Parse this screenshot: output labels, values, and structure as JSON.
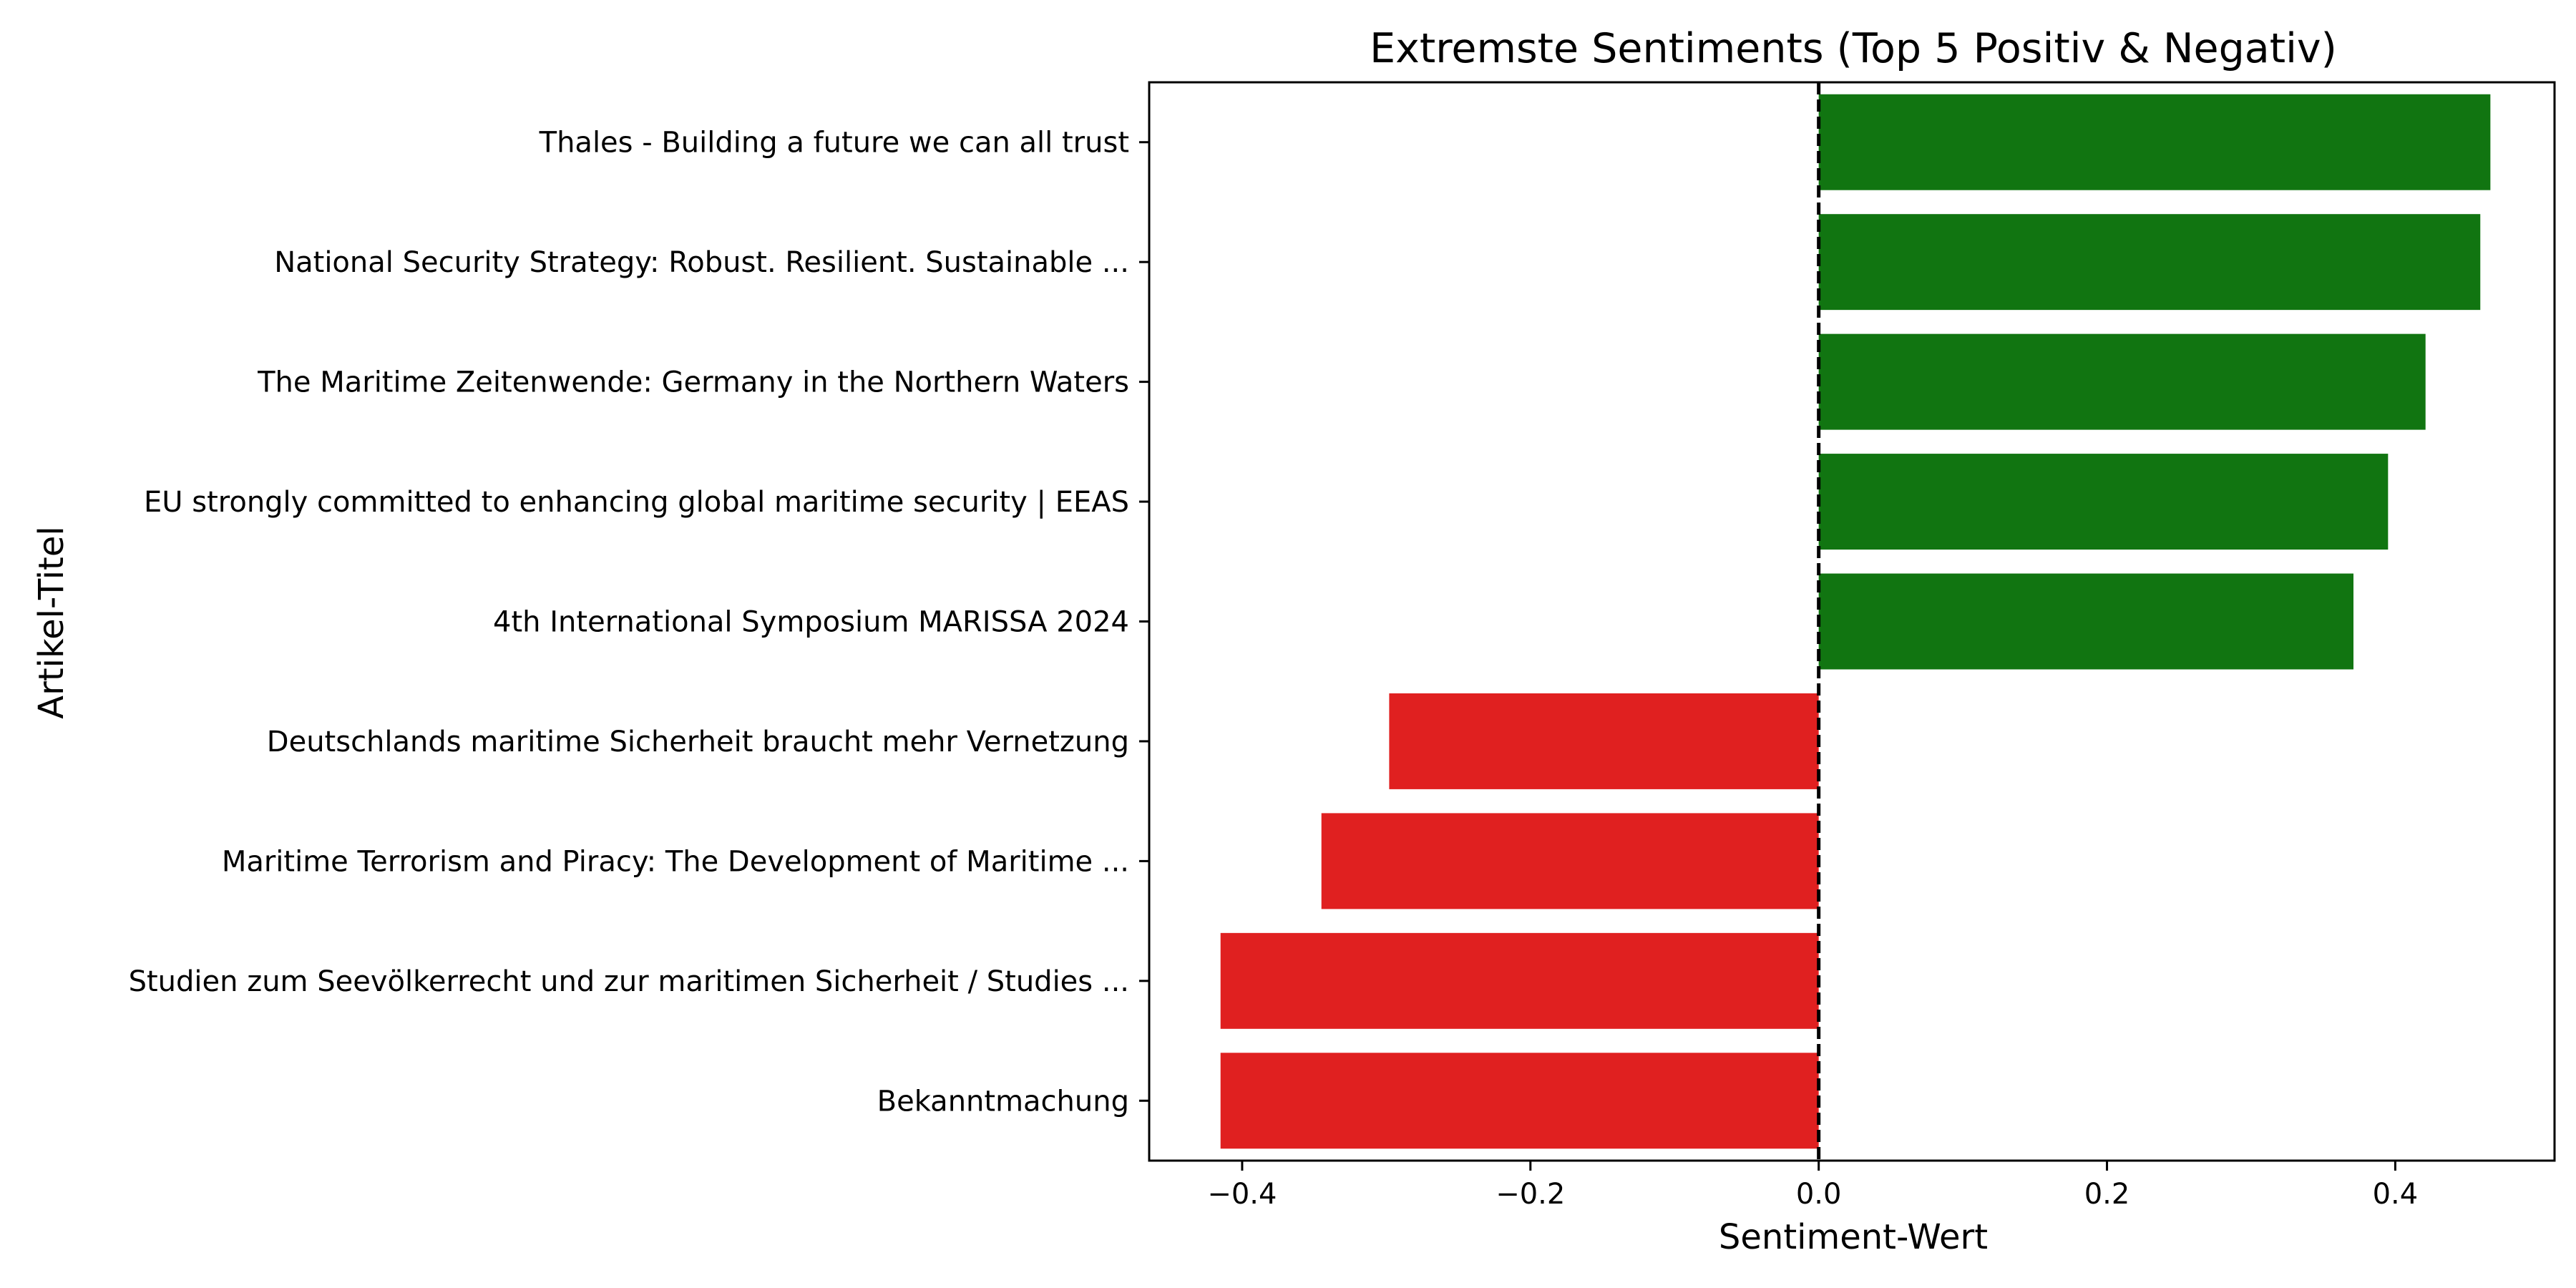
{
  "chart_data": {
    "type": "bar",
    "orientation": "horizontal",
    "title": "Extremste Sentiments (Top 5 Positiv & Negativ)",
    "xlabel": "Sentiment-Wert",
    "ylabel": "Artikel-Titel",
    "xlim": [
      -0.4645,
      0.5105
    ],
    "xticks": [
      -0.4,
      -0.2,
      0.0,
      0.2,
      0.4
    ],
    "xtick_labels": [
      "−0.4",
      "−0.2",
      "0.0",
      "0.2",
      "0.4"
    ],
    "reference_line": {
      "x": 0.0,
      "style": "dashed",
      "color": "#000000"
    },
    "grid": false,
    "legend": "none",
    "colors": {
      "positive": "#117511",
      "negative": "#e02020"
    },
    "categories": [
      "Thales - Building a future we can all trust",
      "National Security Strategy: Robust. Resilient. Sustainable ...",
      "The Maritime Zeitenwende: Germany in the Northern Waters",
      "EU strongly committed to enhancing global maritime security | EEAS",
      "4th International Symposium MARISSA 2024",
      "Deutschlands maritime Sicherheit braucht mehr Vernetzung",
      "Maritime Terrorism and Piracy: The Development of Maritime ...",
      "Studien zum Seevölkerrecht und zur maritimen Sicherheit / Studies ...",
      "Bekanntmachung"
    ],
    "values": [
      0.466,
      0.459,
      0.421,
      0.395,
      0.371,
      -0.298,
      -0.345,
      -0.415,
      -0.415
    ]
  }
}
